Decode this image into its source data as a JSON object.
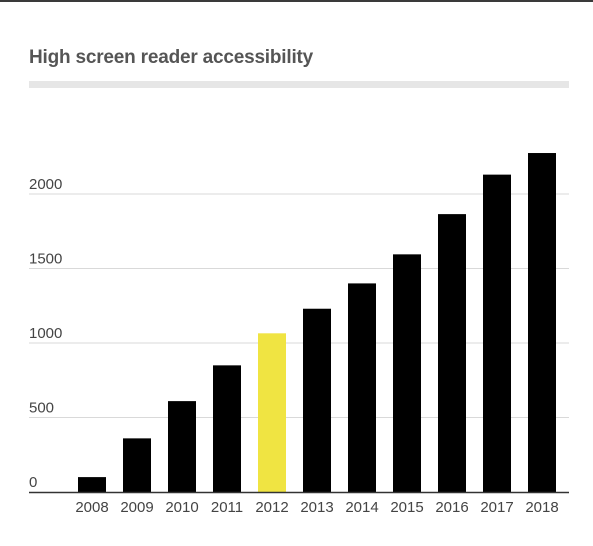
{
  "chart_data": {
    "type": "bar",
    "title": "High screen reader accessibility",
    "xlabel": "",
    "ylabel": "",
    "categories": [
      "2008",
      "2009",
      "2010",
      "2011",
      "2012",
      "2013",
      "2014",
      "2015",
      "2016",
      "2017",
      "2018"
    ],
    "values": [
      100,
      360,
      610,
      850,
      1065,
      1230,
      1400,
      1595,
      1865,
      2130,
      2275
    ],
    "highlight_category": "2012",
    "yticks": [
      0,
      500,
      1000,
      1500,
      2000
    ],
    "ylim": [
      0,
      2400
    ],
    "grid": true,
    "colors": {
      "bar": "#000000",
      "highlight": "#f0e442",
      "grid": "#d9d9d9",
      "axis": "#333333",
      "text": "#444444",
      "title": "#555555"
    }
  }
}
